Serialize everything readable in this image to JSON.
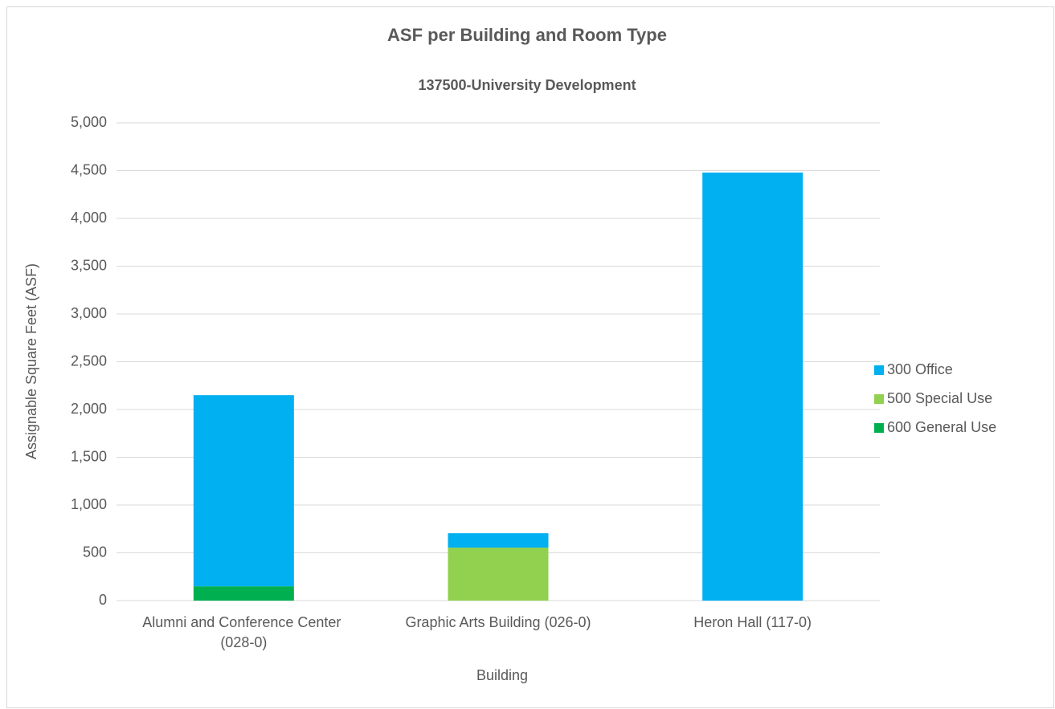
{
  "chart_data": {
    "type": "stacked_bar",
    "title": "ASF per Building and Room Type",
    "subtitle": "137500-University Development",
    "x_label": "Building",
    "y_label": "Assignable Square Feet (ASF)",
    "categories": [
      "Alumni and Conference Center (028-0)",
      "Graphic Arts Building (026-0)",
      "Heron Hall (117-0)"
    ],
    "series": [
      {
        "name": "300 Office",
        "color": "#00b0f0",
        "values": [
          2000,
          150,
          4480
        ]
      },
      {
        "name": "500 Special Use",
        "color": "#92d050",
        "values": [
          0,
          555,
          0
        ]
      },
      {
        "name": "600 General Use",
        "color": "#00b050",
        "values": [
          150,
          0,
          0
        ]
      }
    ],
    "ylim": [
      0,
      5000
    ],
    "yticks": [
      0,
      500,
      {
        "value": 1000,
        "label": "1,000"
      },
      {
        "value": 1500,
        "label": "1,500"
      },
      {
        "value": 2000,
        "label": "2,000"
      },
      {
        "value": 2500,
        "label": "2,500"
      },
      {
        "value": 3000,
        "label": "3,000"
      },
      {
        "value": 3500,
        "label": "3,500"
      },
      {
        "value": 4000,
        "label": "4,000"
      },
      {
        "value": 4500,
        "label": "4,500"
      },
      {
        "value": 5000,
        "label": "5,000"
      }
    ],
    "grid": true,
    "legend": "right"
  }
}
